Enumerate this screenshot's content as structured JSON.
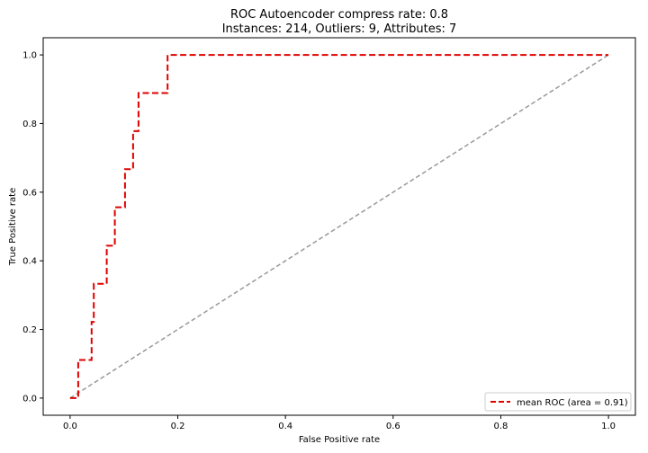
{
  "chart_data": {
    "type": "line",
    "title": "ROC Autoencoder compress rate: 0.8",
    "subtitle": "Instances: 214, Outliers: 9, Attributes: 7",
    "xlabel": "False Positive rate",
    "ylabel": "True Positive rate",
    "xlim": [
      -0.05,
      1.05
    ],
    "ylim": [
      -0.05,
      1.05
    ],
    "xticks": [
      "0.0",
      "0.2",
      "0.4",
      "0.6",
      "0.8",
      "1.0"
    ],
    "yticks": [
      "0.0",
      "0.2",
      "0.4",
      "0.6",
      "0.8",
      "1.0"
    ],
    "grid": false,
    "legend": {
      "position": "lower right"
    },
    "series": [
      {
        "name": "mean ROC (area = 0.91)",
        "color": "#e00000",
        "style": "dashed",
        "x": [
          0.0,
          0.015,
          0.015,
          0.04,
          0.04,
          0.044,
          0.044,
          0.068,
          0.068,
          0.083,
          0.083,
          0.102,
          0.102,
          0.117,
          0.117,
          0.127,
          0.127,
          0.181,
          0.181,
          1.0
        ],
        "y": [
          0.0,
          0.0,
          0.111,
          0.111,
          0.222,
          0.222,
          0.333,
          0.333,
          0.444,
          0.444,
          0.556,
          0.556,
          0.667,
          0.667,
          0.778,
          0.778,
          0.889,
          0.889,
          1.0,
          1.0
        ]
      },
      {
        "name": "",
        "color": "#999999",
        "style": "dashed",
        "x": [
          0.0,
          1.0
        ],
        "y": [
          0.0,
          1.0
        ]
      }
    ]
  }
}
